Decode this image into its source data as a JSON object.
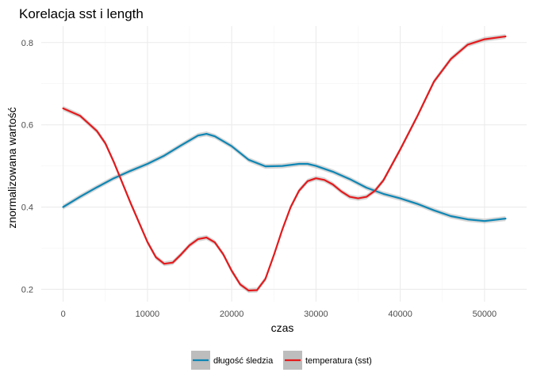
{
  "chart_data": {
    "type": "line",
    "title": "Korelacja sst i length",
    "xlabel": "czas",
    "ylabel": "znormalizowana wartość",
    "xlim": [
      -2600,
      55000
    ],
    "ylim": [
      0.17,
      0.84
    ],
    "x_ticks": [
      0,
      10000,
      20000,
      30000,
      40000,
      50000
    ],
    "x_tick_labels": [
      "0",
      "10000",
      "20000",
      "30000",
      "40000",
      "50000"
    ],
    "y_ticks": [
      0.2,
      0.4,
      0.6,
      0.8
    ],
    "y_tick_labels": [
      "0.2",
      "0.4",
      "0.6",
      "0.8"
    ],
    "grid": true,
    "legend_position": "bottom",
    "confidence_band": true,
    "series": [
      {
        "name": "długość śledzia",
        "color": "#0e86b4",
        "x": [
          0,
          2000,
          4000,
          6000,
          8000,
          10000,
          12000,
          14000,
          16000,
          17000,
          18000,
          20000,
          22000,
          24000,
          26000,
          28000,
          29000,
          30000,
          32000,
          34000,
          36000,
          38000,
          40000,
          42000,
          44000,
          46000,
          48000,
          50000,
          52500
        ],
        "values": [
          0.4,
          0.425,
          0.448,
          0.47,
          0.488,
          0.505,
          0.525,
          0.55,
          0.574,
          0.578,
          0.572,
          0.548,
          0.515,
          0.499,
          0.5,
          0.505,
          0.505,
          0.5,
          0.486,
          0.468,
          0.447,
          0.432,
          0.421,
          0.408,
          0.392,
          0.378,
          0.37,
          0.366,
          0.372
        ]
      },
      {
        "name": "temperatura (sst)",
        "color": "#e41a1c",
        "x": [
          0,
          2000,
          4000,
          5000,
          6000,
          8000,
          10000,
          11000,
          12000,
          13000,
          14000,
          15000,
          16000,
          17000,
          18000,
          19000,
          20000,
          21000,
          22000,
          23000,
          24000,
          25000,
          26000,
          27000,
          28000,
          29000,
          30000,
          31000,
          32000,
          33000,
          34000,
          35000,
          36000,
          37000,
          38000,
          40000,
          42000,
          44000,
          46000,
          48000,
          50000,
          52500
        ],
        "values": [
          0.64,
          0.622,
          0.585,
          0.555,
          0.51,
          0.41,
          0.315,
          0.278,
          0.262,
          0.265,
          0.285,
          0.307,
          0.322,
          0.326,
          0.314,
          0.285,
          0.245,
          0.212,
          0.197,
          0.198,
          0.225,
          0.283,
          0.345,
          0.4,
          0.44,
          0.463,
          0.47,
          0.466,
          0.455,
          0.438,
          0.425,
          0.421,
          0.425,
          0.44,
          0.465,
          0.54,
          0.62,
          0.705,
          0.76,
          0.795,
          0.808,
          0.815
        ]
      }
    ]
  }
}
